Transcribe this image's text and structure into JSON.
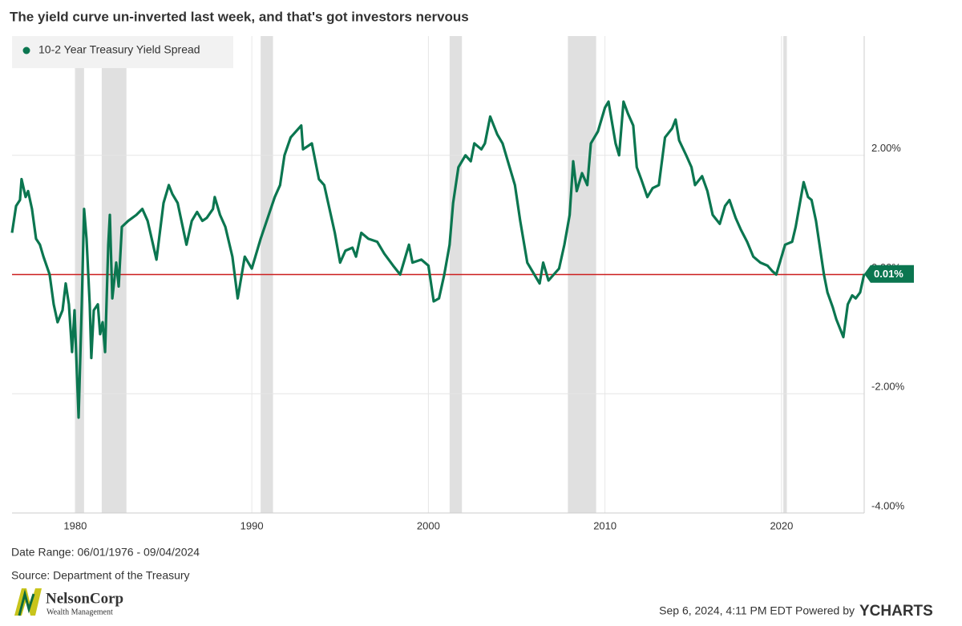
{
  "chart_data": {
    "type": "line",
    "title": "The yield curve un-inverted last week, and that's got investors nervous",
    "xlim": [
      1976.42,
      2024.68
    ],
    "xticks": [
      1980,
      1990,
      2000,
      2010,
      2020
    ],
    "ylim": [
      -4,
      4
    ],
    "yticks": [
      {
        "value": -4,
        "label": "-4.00%"
      },
      {
        "value": -2,
        "label": "-2.00%"
      },
      {
        "value": 0,
        "label": "0.00%"
      },
      {
        "value": 2,
        "label": "2.00%"
      }
    ],
    "grid": true,
    "legend": "top-left",
    "reference_line": {
      "value": 0,
      "color": "#cc1f1f"
    },
    "recessions": [
      {
        "start": 1980.0,
        "end": 1980.5
      },
      {
        "start": 1981.5,
        "end": 1982.9
      },
      {
        "start": 1990.5,
        "end": 1991.2
      },
      {
        "start": 2001.2,
        "end": 2001.9
      },
      {
        "start": 2007.9,
        "end": 2009.5
      },
      {
        "start": 2020.1,
        "end": 2020.3
      }
    ],
    "end_label": {
      "value": 0.01,
      "label": "0.01%"
    },
    "series": [
      {
        "name": "10-2 Year Treasury Yield Spread",
        "color": "#0b7650",
        "x": [
          1976.42,
          1976.65,
          1976.87,
          1976.96,
          1977.19,
          1977.33,
          1977.55,
          1977.78,
          1978.0,
          1978.2,
          1978.55,
          1978.78,
          1979.0,
          1979.28,
          1979.46,
          1979.64,
          1979.82,
          1979.96,
          1980.19,
          1980.37,
          1980.5,
          1980.64,
          1980.82,
          1980.91,
          1981.05,
          1981.28,
          1981.41,
          1981.55,
          1981.69,
          1981.87,
          1981.96,
          1982.1,
          1982.32,
          1982.46,
          1982.64,
          1983.0,
          1983.46,
          1983.8,
          1984.1,
          1984.6,
          1985.0,
          1985.3,
          1985.5,
          1985.8,
          1986.3,
          1986.6,
          1986.9,
          1987.2,
          1987.45,
          1987.8,
          1987.9,
          1988.2,
          1988.5,
          1988.9,
          1989.2,
          1989.6,
          1990.0,
          1990.5,
          1990.9,
          1991.3,
          1991.6,
          1991.85,
          1992.2,
          1992.8,
          1992.9,
          1993.4,
          1993.8,
          1994.1,
          1994.4,
          1994.7,
          1995.0,
          1995.3,
          1995.7,
          1995.9,
          1996.2,
          1996.6,
          1997.1,
          1997.5,
          1998.0,
          1998.4,
          1998.9,
          1999.1,
          1999.6,
          2000.0,
          2000.3,
          2000.6,
          2000.9,
          2001.2,
          2001.4,
          2001.7,
          2002.1,
          2002.4,
          2002.6,
          2003.0,
          2003.2,
          2003.5,
          2003.9,
          2004.2,
          2004.6,
          2004.9,
          2005.2,
          2005.6,
          2005.9,
          2006.3,
          2006.5,
          2006.8,
          2007.1,
          2007.4,
          2007.7,
          2008.0,
          2008.2,
          2008.4,
          2008.7,
          2009.0,
          2009.2,
          2009.6,
          2010.0,
          2010.2,
          2010.6,
          2010.8,
          2011.05,
          2011.3,
          2011.6,
          2011.8,
          2012.05,
          2012.4,
          2012.7,
          2013.05,
          2013.4,
          2013.8,
          2014.0,
          2014.2,
          2014.6,
          2014.9,
          2015.1,
          2015.5,
          2015.8,
          2016.1,
          2016.5,
          2016.8,
          2017.05,
          2017.4,
          2017.7,
          2018.05,
          2018.4,
          2018.8,
          2019.2,
          2019.5,
          2019.7,
          2020.0,
          2020.2,
          2020.6,
          2020.8,
          2021.1,
          2021.25,
          2021.5,
          2021.7,
          2021.95,
          2022.15,
          2022.4,
          2022.6,
          2022.9,
          2023.1,
          2023.5,
          2023.75,
          2024.0,
          2024.2,
          2024.45,
          2024.68
        ],
        "values": [
          0.7,
          1.15,
          1.25,
          1.6,
          1.3,
          1.4,
          1.1,
          0.6,
          0.5,
          0.3,
          0.0,
          -0.5,
          -0.8,
          -0.6,
          -0.15,
          -0.5,
          -1.3,
          -0.6,
          -2.4,
          -0.5,
          1.1,
          0.6,
          -0.5,
          -1.4,
          -0.6,
          -0.5,
          -1.0,
          -0.8,
          -1.3,
          0.5,
          1.0,
          -0.4,
          0.2,
          -0.2,
          0.8,
          0.9,
          1.0,
          1.1,
          0.9,
          0.25,
          1.2,
          1.5,
          1.35,
          1.2,
          0.5,
          0.9,
          1.05,
          0.9,
          0.95,
          1.1,
          1.3,
          1.0,
          0.8,
          0.3,
          -0.4,
          0.3,
          0.1,
          0.6,
          0.95,
          1.3,
          1.5,
          2.0,
          2.3,
          2.5,
          2.1,
          2.2,
          1.6,
          1.5,
          1.1,
          0.7,
          0.2,
          0.4,
          0.45,
          0.3,
          0.7,
          0.6,
          0.55,
          0.35,
          0.15,
          0.0,
          0.5,
          0.2,
          0.25,
          0.15,
          -0.45,
          -0.4,
          0.0,
          0.5,
          1.2,
          1.8,
          2.0,
          1.9,
          2.2,
          2.1,
          2.2,
          2.65,
          2.35,
          2.2,
          1.8,
          1.5,
          0.9,
          0.2,
          0.05,
          -0.15,
          0.2,
          -0.1,
          0.0,
          0.1,
          0.5,
          1.0,
          1.9,
          1.4,
          1.7,
          1.5,
          2.2,
          2.4,
          2.8,
          2.9,
          2.2,
          2.0,
          2.9,
          2.7,
          2.5,
          1.8,
          1.6,
          1.3,
          1.45,
          1.5,
          2.3,
          2.45,
          2.6,
          2.25,
          2.0,
          1.8,
          1.5,
          1.65,
          1.4,
          1.0,
          0.85,
          1.15,
          1.25,
          0.95,
          0.75,
          0.55,
          0.3,
          0.2,
          0.15,
          0.05,
          0.0,
          0.3,
          0.5,
          0.55,
          0.8,
          1.3,
          1.55,
          1.3,
          1.25,
          0.9,
          0.5,
          0.0,
          -0.3,
          -0.55,
          -0.75,
          -1.05,
          -0.5,
          -0.35,
          -0.4,
          -0.3,
          0.01
        ]
      }
    ]
  },
  "footer": {
    "date_range": "Date Range: 06/01/1976 - 09/04/2024",
    "source": "Source: Department of the Treasury",
    "timestamp": "Sep 6, 2024, 4:11 PM EDT Powered by",
    "brand": "YCHARTS",
    "logo_name": "NelsonCorp",
    "logo_tagline": "Wealth Management"
  }
}
